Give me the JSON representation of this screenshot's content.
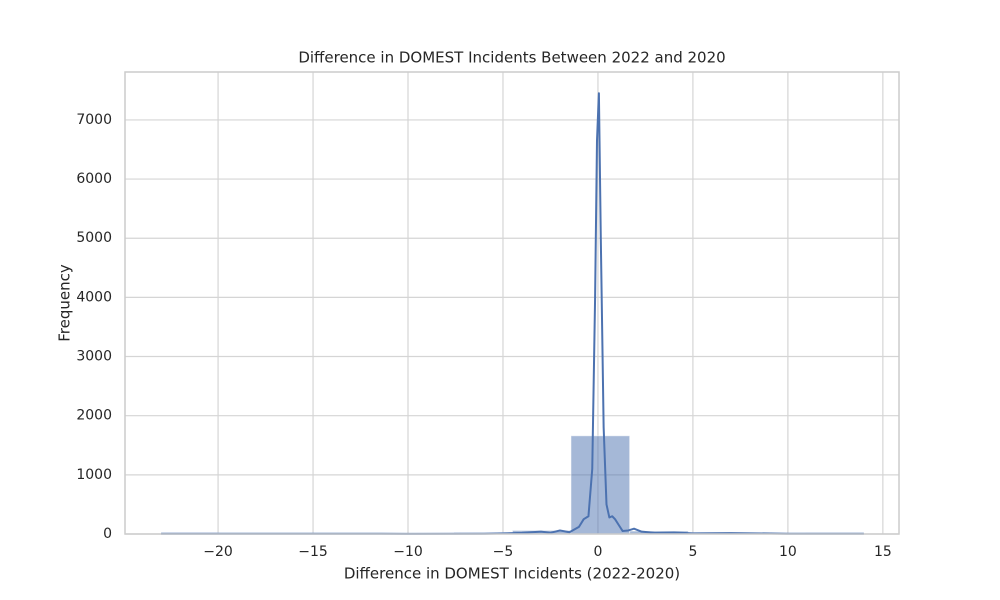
{
  "chart_data": {
    "type": "histogram",
    "title": "Difference in DOMEST Incidents Between 2022 and 2020",
    "x_label": "Difference in DOMEST Incidents (2022-2020)",
    "y_label": "Frequency",
    "bins": [
      -23,
      -19.92,
      -16.83,
      -13.75,
      -10.67,
      -7.58,
      -4.5,
      -1.42,
      1.67,
      4.75,
      7.83,
      10.92,
      14
    ],
    "values": [
      20,
      12,
      15,
      3,
      6,
      25,
      60,
      1660,
      50,
      20,
      12,
      18
    ],
    "color": "#4c72b0",
    "line": {
      "color": "#4c72b0",
      "x": [
        -23,
        -18,
        -13,
        -10,
        -6,
        -5,
        -4,
        -3.5,
        -3,
        -2.5,
        -2,
        -1.5,
        -1,
        -0.75,
        -0.5,
        -0.3,
        -0.15,
        -0.05,
        0.05,
        0.15,
        0.3,
        0.45,
        0.6,
        0.75,
        0.9,
        1.1,
        1.3,
        1.6,
        1.9,
        2.3,
        3,
        4,
        5,
        7,
        10,
        14
      ],
      "values": [
        5,
        5,
        5,
        3,
        5,
        10,
        20,
        30,
        40,
        20,
        60,
        30,
        120,
        250,
        300,
        1100,
        4000,
        6650,
        7450,
        5000,
        1800,
        500,
        280,
        300,
        250,
        150,
        50,
        60,
        90,
        40,
        20,
        25,
        10,
        15,
        5,
        5
      ]
    },
    "xlim": [
      -24.9,
      15.85
    ],
    "ylim": [
      0,
      7810
    ],
    "xticks": [
      {
        "value": -20,
        "label": "−20"
      },
      {
        "value": -15,
        "label": "−15"
      },
      {
        "value": -10,
        "label": "−10"
      },
      {
        "value": -5,
        "label": "−5"
      },
      0,
      5,
      10,
      15
    ],
    "yticks": [
      0,
      1000,
      2000,
      3000,
      4000,
      5000,
      6000,
      7000
    ],
    "grid": true
  }
}
